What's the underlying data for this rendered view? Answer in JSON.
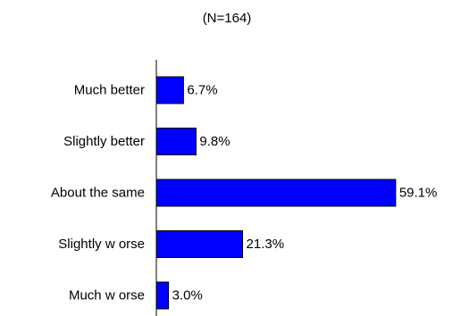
{
  "chart_data": {
    "type": "bar",
    "orientation": "horizontal",
    "subtitle": "(N=164)",
    "categories": [
      "Much better",
      "Slightly better",
      "About the same",
      "Slightly w orse",
      "Much w orse"
    ],
    "values": [
      6.7,
      9.8,
      59.1,
      21.3,
      3.0
    ],
    "value_labels": [
      "6.7%",
      "9.8%",
      "59.1%",
      "21.3%",
      "3.0%"
    ],
    "bar_color": "#0000ff",
    "bar_edge_color": "#000000",
    "grid": false,
    "legend": "none"
  }
}
